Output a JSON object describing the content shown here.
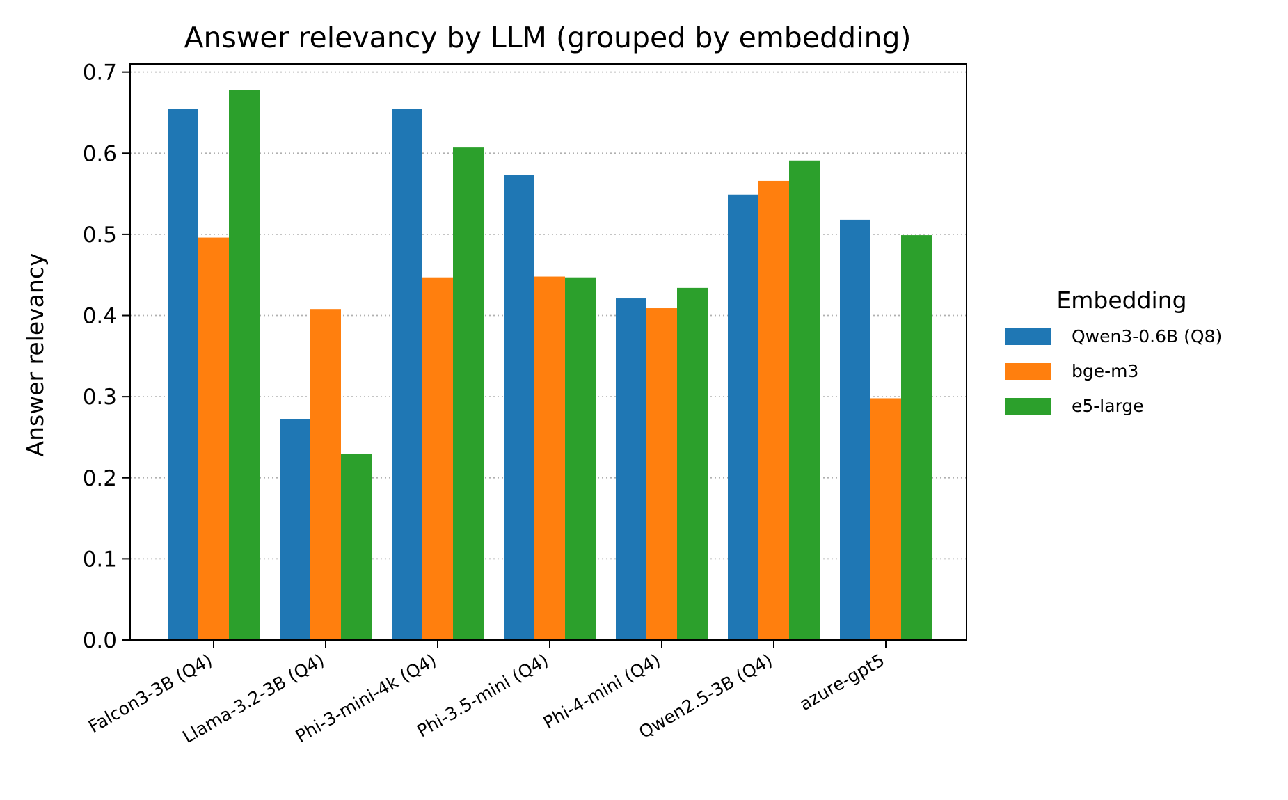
{
  "chart_data": {
    "type": "bar",
    "title": "Answer relevancy by LLM (grouped by embedding)",
    "xlabel": "",
    "ylabel": "Answer relevancy",
    "ylim": [
      0,
      0.71
    ],
    "yticks": [
      "0.0",
      "0.1",
      "0.2",
      "0.3",
      "0.4",
      "0.5",
      "0.6",
      "0.7"
    ],
    "grid": "y, dotted",
    "categories": [
      "Falcon3-3B (Q4)",
      "Llama-3.2-3B (Q4)",
      "Phi-3-mini-4k (Q4)",
      "Phi-3.5-mini (Q4)",
      "Phi-4-mini (Q4)",
      "Qwen2.5-3B (Q4)",
      "azure-gpt5"
    ],
    "series": [
      {
        "name": "Qwen3-0.6B (Q8)",
        "color": "#1f77b4",
        "values": [
          0.655,
          0.272,
          0.655,
          0.573,
          0.421,
          0.549,
          0.518
        ]
      },
      {
        "name": "bge-m3",
        "color": "#ff7f0e",
        "values": [
          0.496,
          0.408,
          0.447,
          0.448,
          0.409,
          0.566,
          0.298
        ]
      },
      {
        "name": "e5-large",
        "color": "#2ca02c",
        "values": [
          0.678,
          0.229,
          0.607,
          0.447,
          0.434,
          0.591,
          0.499
        ]
      }
    ],
    "legend": {
      "title": "Embedding",
      "placement": "outside-right"
    }
  }
}
